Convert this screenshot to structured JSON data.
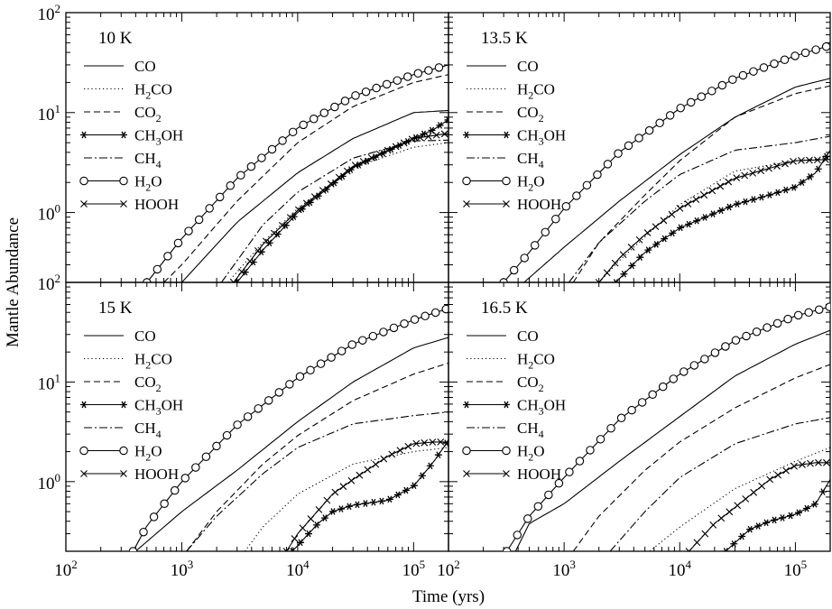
{
  "figure": {
    "ylabel": "Mantle Abundance",
    "xlabel": "Time (yrs)"
  },
  "axes": {
    "x_ticks": [
      {
        "base": "10",
        "exp": "2",
        "value": 100
      },
      {
        "base": "10",
        "exp": "3",
        "value": 1000
      },
      {
        "base": "10",
        "exp": "4",
        "value": 10000
      },
      {
        "base": "10",
        "exp": "5",
        "value": 100000
      }
    ],
    "y_ticks": [
      {
        "base": "10",
        "exp": "0",
        "value": 1
      },
      {
        "base": "10",
        "exp": "1",
        "value": 10
      },
      {
        "base": "10",
        "exp": "2",
        "value": 100
      }
    ],
    "xlim": [
      100,
      200000
    ],
    "ylim": [
      0.2,
      100
    ]
  },
  "legend_items": [
    {
      "id": "CO",
      "parts": [
        [
          "CO",
          ""
        ]
      ],
      "style": "solid"
    },
    {
      "id": "H2CO",
      "parts": [
        [
          "H",
          ""
        ],
        [
          "2",
          "sub"
        ],
        [
          "CO",
          ""
        ]
      ],
      "style": "dotted"
    },
    {
      "id": "CO2",
      "parts": [
        [
          "CO",
          ""
        ],
        [
          "2",
          "sub"
        ]
      ],
      "style": "dashed"
    },
    {
      "id": "CH3OH",
      "parts": [
        [
          "CH",
          ""
        ],
        [
          "3",
          "sub"
        ],
        [
          "OH",
          ""
        ]
      ],
      "style": "solid",
      "marker": "star"
    },
    {
      "id": "CH4",
      "parts": [
        [
          "CH",
          ""
        ],
        [
          "4",
          "sub"
        ]
      ],
      "style": "dashdot"
    },
    {
      "id": "H2O",
      "parts": [
        [
          "H",
          ""
        ],
        [
          "2",
          "sub"
        ],
        [
          "O",
          ""
        ]
      ],
      "style": "solid",
      "marker": "circle"
    },
    {
      "id": "HOOH",
      "parts": [
        [
          "HOOH",
          ""
        ]
      ],
      "style": "solid",
      "marker": "x"
    }
  ],
  "chart_data": [
    {
      "type": "line",
      "title": "10 K",
      "xscale": "log",
      "yscale": "log",
      "xlim": [
        100,
        200000
      ],
      "ylim": [
        0.2,
        100
      ],
      "series": [
        {
          "name": "CO",
          "x": [
            1000,
            3000,
            10000,
            30000,
            100000,
            200000
          ],
          "y": [
            0.2,
            0.8,
            2.5,
            5.5,
            10,
            10.5
          ]
        },
        {
          "name": "H2CO",
          "x": [
            2500,
            5000,
            10000,
            30000,
            100000,
            200000
          ],
          "y": [
            0.2,
            0.5,
            1.1,
            2.8,
            4.5,
            5
          ]
        },
        {
          "name": "CO2",
          "x": [
            700,
            1000,
            3000,
            10000,
            30000,
            100000,
            200000
          ],
          "y": [
            0.2,
            0.3,
            1.3,
            5,
            11.5,
            20,
            24
          ]
        },
        {
          "name": "CH3OH",
          "x": [
            3000,
            5000,
            10000,
            30000,
            100000,
            150000,
            200000
          ],
          "y": [
            0.2,
            0.42,
            1.0,
            2.8,
            5.5,
            6.8,
            8.5
          ]
        },
        {
          "name": "CH4",
          "x": [
            2200,
            5000,
            10000,
            30000,
            100000,
            200000
          ],
          "y": [
            0.2,
            0.75,
            1.6,
            3.5,
            5.2,
            5.3
          ]
        },
        {
          "name": "H2O",
          "x": [
            500,
            1000,
            3000,
            10000,
            30000,
            100000,
            200000
          ],
          "y": [
            0.2,
            0.55,
            2.2,
            7,
            14.5,
            24,
            30
          ]
        },
        {
          "name": "HOOH",
          "x": [
            2800,
            5000,
            10000,
            30000,
            100000,
            200000
          ],
          "y": [
            0.2,
            0.48,
            1.05,
            2.9,
            5.5,
            6.2
          ]
        }
      ]
    },
    {
      "type": "line",
      "title": "13.5 K",
      "xscale": "log",
      "yscale": "log",
      "xlim": [
        100,
        200000
      ],
      "ylim": [
        0.2,
        100
      ],
      "series": [
        {
          "name": "CO",
          "x": [
            450,
            1000,
            3000,
            10000,
            30000,
            100000,
            200000
          ],
          "y": [
            0.2,
            0.45,
            1.3,
            3.8,
            9,
            18,
            22
          ]
        },
        {
          "name": "H2CO",
          "x": [
            2000,
            3000,
            10000,
            30000,
            100000,
            200000
          ],
          "y": [
            0.2,
            0.33,
            1.2,
            2.6,
            3.3,
            3.5
          ]
        },
        {
          "name": "CO2",
          "x": [
            1200,
            2000,
            5000,
            10000,
            30000,
            100000,
            200000
          ],
          "y": [
            0.2,
            0.5,
            1.5,
            3.3,
            9,
            15.5,
            18.5
          ]
        },
        {
          "name": "CH3OH",
          "x": [
            2800,
            5000,
            10000,
            30000,
            60000,
            100000,
            150000,
            200000
          ],
          "y": [
            0.2,
            0.4,
            0.7,
            1.2,
            1.5,
            1.8,
            2.5,
            4.2
          ]
        },
        {
          "name": "CH4",
          "x": [
            1100,
            2000,
            5000,
            10000,
            30000,
            100000,
            200000
          ],
          "y": [
            0.2,
            0.5,
            1.3,
            2.4,
            4.2,
            5,
            5.8
          ]
        },
        {
          "name": "H2O",
          "x": [
            300,
            500,
            1000,
            3000,
            10000,
            30000,
            100000,
            200000
          ],
          "y": [
            0.2,
            0.4,
            1.1,
            4,
            11,
            22,
            37,
            47
          ]
        },
        {
          "name": "HOOH",
          "x": [
            2000,
            3000,
            5000,
            10000,
            30000,
            100000,
            200000
          ],
          "y": [
            0.2,
            0.35,
            0.6,
            1.1,
            2.2,
            3.3,
            3.4
          ]
        }
      ]
    },
    {
      "type": "line",
      "title": "15 K",
      "xscale": "log",
      "yscale": "log",
      "xlim": [
        100,
        200000
      ],
      "ylim": [
        0.2,
        100
      ],
      "series": [
        {
          "name": "CO",
          "x": [
            400,
            1000,
            3000,
            10000,
            30000,
            100000,
            200000
          ],
          "y": [
            0.2,
            0.5,
            1.3,
            4,
            10,
            22,
            28
          ]
        },
        {
          "name": "H2CO",
          "x": [
            3500,
            5000,
            10000,
            30000,
            100000,
            200000
          ],
          "y": [
            0.2,
            0.35,
            0.75,
            1.5,
            2,
            2.2
          ]
        },
        {
          "name": "CO2",
          "x": [
            1100,
            2000,
            5000,
            10000,
            30000,
            100000,
            200000
          ],
          "y": [
            0.2,
            0.5,
            1.5,
            2.9,
            6.5,
            12,
            15.5
          ]
        },
        {
          "name": "CH3OH",
          "x": [
            9000,
            15000,
            20000,
            30000,
            60000,
            100000,
            150000,
            200000
          ],
          "y": [
            0.2,
            0.38,
            0.5,
            0.58,
            0.65,
            0.9,
            1.6,
            2.6
          ]
        },
        {
          "name": "CH4",
          "x": [
            1100,
            2000,
            5000,
            10000,
            30000,
            100000,
            200000
          ],
          "y": [
            0.2,
            0.45,
            1.2,
            2.2,
            3.8,
            4.6,
            5
          ]
        },
        {
          "name": "H2O",
          "x": [
            380,
            500,
            1000,
            3000,
            10000,
            30000,
            100000,
            200000
          ],
          "y": [
            0.2,
            0.36,
            1,
            3.7,
            11,
            24,
            42,
            55
          ]
        },
        {
          "name": "HOOH",
          "x": [
            8000,
            10000,
            20000,
            30000,
            60000,
            100000,
            150000,
            200000
          ],
          "y": [
            0.2,
            0.3,
            0.75,
            1.05,
            1.8,
            2.4,
            2.5,
            2.5
          ]
        }
      ]
    },
    {
      "type": "line",
      "title": "16.5 K",
      "xscale": "log",
      "yscale": "log",
      "xlim": [
        100,
        200000
      ],
      "ylim": [
        0.2,
        100
      ],
      "series": [
        {
          "name": "CO",
          "x": [
            380,
            500,
            1000,
            3000,
            10000,
            30000,
            100000,
            200000
          ],
          "y": [
            0.2,
            0.38,
            0.6,
            1.6,
            4.5,
            11.5,
            24,
            33
          ]
        },
        {
          "name": "H2CO",
          "x": [
            5500,
            10000,
            30000,
            100000,
            200000
          ],
          "y": [
            0.2,
            0.35,
            0.85,
            1.6,
            2.2
          ]
        },
        {
          "name": "CO2",
          "x": [
            1200,
            2000,
            5000,
            10000,
            30000,
            100000,
            200000
          ],
          "y": [
            0.2,
            0.45,
            1.3,
            2.5,
            5.5,
            11,
            15
          ]
        },
        {
          "name": "CH3OH",
          "x": [
            25000,
            40000,
            60000,
            100000,
            150000,
            200000
          ],
          "y": [
            0.2,
            0.33,
            0.4,
            0.47,
            0.6,
            1.05
          ]
        },
        {
          "name": "CH4",
          "x": [
            2500,
            5000,
            10000,
            30000,
            100000,
            200000
          ],
          "y": [
            0.2,
            0.5,
            1.1,
            2.4,
            3.8,
            4.4
          ]
        },
        {
          "name": "H2O",
          "x": [
            320,
            500,
            1000,
            3000,
            10000,
            30000,
            100000,
            200000
          ],
          "y": [
            0.2,
            0.45,
            1.1,
            4.2,
            12,
            26,
            46,
            57
          ]
        },
        {
          "name": "HOOH",
          "x": [
            12000,
            20000,
            30000,
            60000,
            100000,
            150000,
            200000
          ],
          "y": [
            0.2,
            0.38,
            0.55,
            1.05,
            1.45,
            1.55,
            1.55
          ]
        }
      ]
    }
  ]
}
